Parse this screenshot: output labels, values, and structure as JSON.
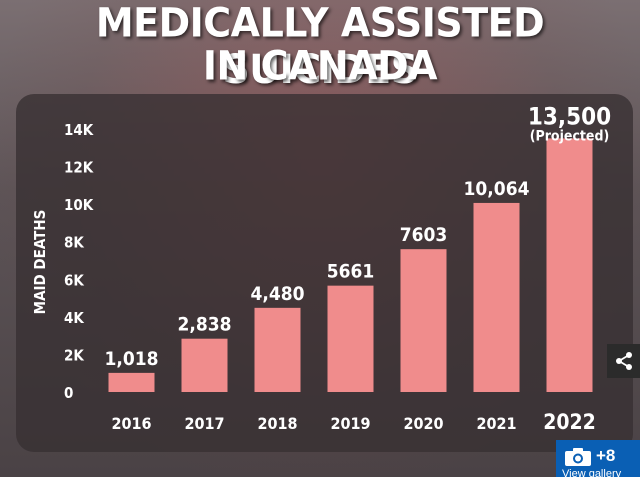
{
  "title_line1": "MEDICALLY ASSISTED SUICIDES",
  "title_line2": "IN CANADA",
  "chart_data": {
    "type": "bar",
    "categories": [
      "2016",
      "2017",
      "2018",
      "2019",
      "2020",
      "2021",
      "2022"
    ],
    "values": [
      1018,
      2838,
      4480,
      5661,
      7603,
      10064,
      13500
    ],
    "value_labels": [
      "1,018",
      "2,838",
      "4,480",
      "5661",
      "7603",
      "10,064",
      "13,500"
    ],
    "annotation": "(Projected)",
    "ylabel": "MAID DEATHS",
    "ylim": [
      0,
      14000
    ],
    "yticks": [
      0,
      2000,
      4000,
      6000,
      8000,
      10000,
      12000,
      14000
    ],
    "ytick_labels": [
      "0",
      "2K",
      "4K",
      "6K",
      "8K",
      "10K",
      "12K",
      "14K"
    ],
    "grid": false,
    "bar_color": "#f08c8c"
  },
  "ui": {
    "gallery_count": "+8",
    "gallery_label": "View gallery",
    "share_icon": "share-icon",
    "camera_icon": "camera-icon"
  }
}
